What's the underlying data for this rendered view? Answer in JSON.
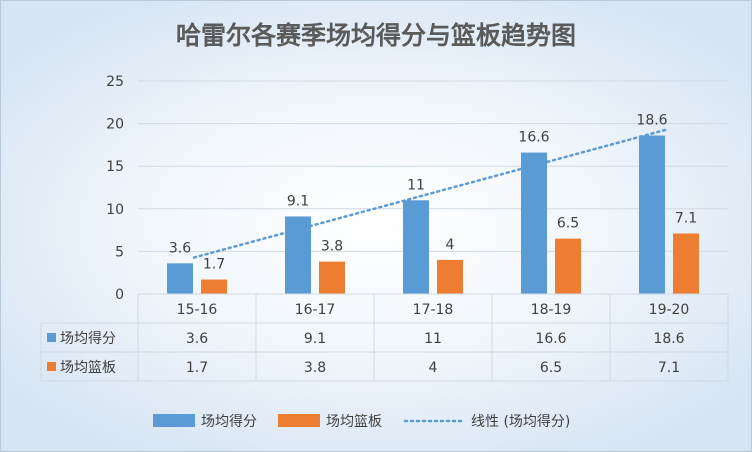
{
  "chart_data": {
    "type": "bar",
    "title": "哈雷尔各赛季场均得分与篮板趋势图",
    "categories": [
      "15-16",
      "16-17",
      "17-18",
      "18-19",
      "19-20"
    ],
    "series": [
      {
        "name": "场均得分",
        "values": [
          3.6,
          9.1,
          11,
          16.6,
          18.6
        ],
        "color": "#5b9bd5"
      },
      {
        "name": "场均篮板",
        "values": [
          1.7,
          3.8,
          4,
          6.5,
          7.1
        ],
        "color": "#ed7d31"
      }
    ],
    "value_labels": [
      [
        "3.6",
        "9.1",
        "11",
        "16.6",
        "18.6"
      ],
      [
        "1.7",
        "3.8",
        "4",
        "6.5",
        "7.1"
      ]
    ],
    "trendline": {
      "name": "线性 (场均得分)",
      "series": "场均得分",
      "style": "dotted",
      "color": "#5b9bd5"
    },
    "yticks": [
      "0",
      "5",
      "10",
      "15",
      "20",
      "25"
    ],
    "ylim": [
      0,
      25
    ],
    "grid": true,
    "data_table": true,
    "legend": "bottom"
  }
}
